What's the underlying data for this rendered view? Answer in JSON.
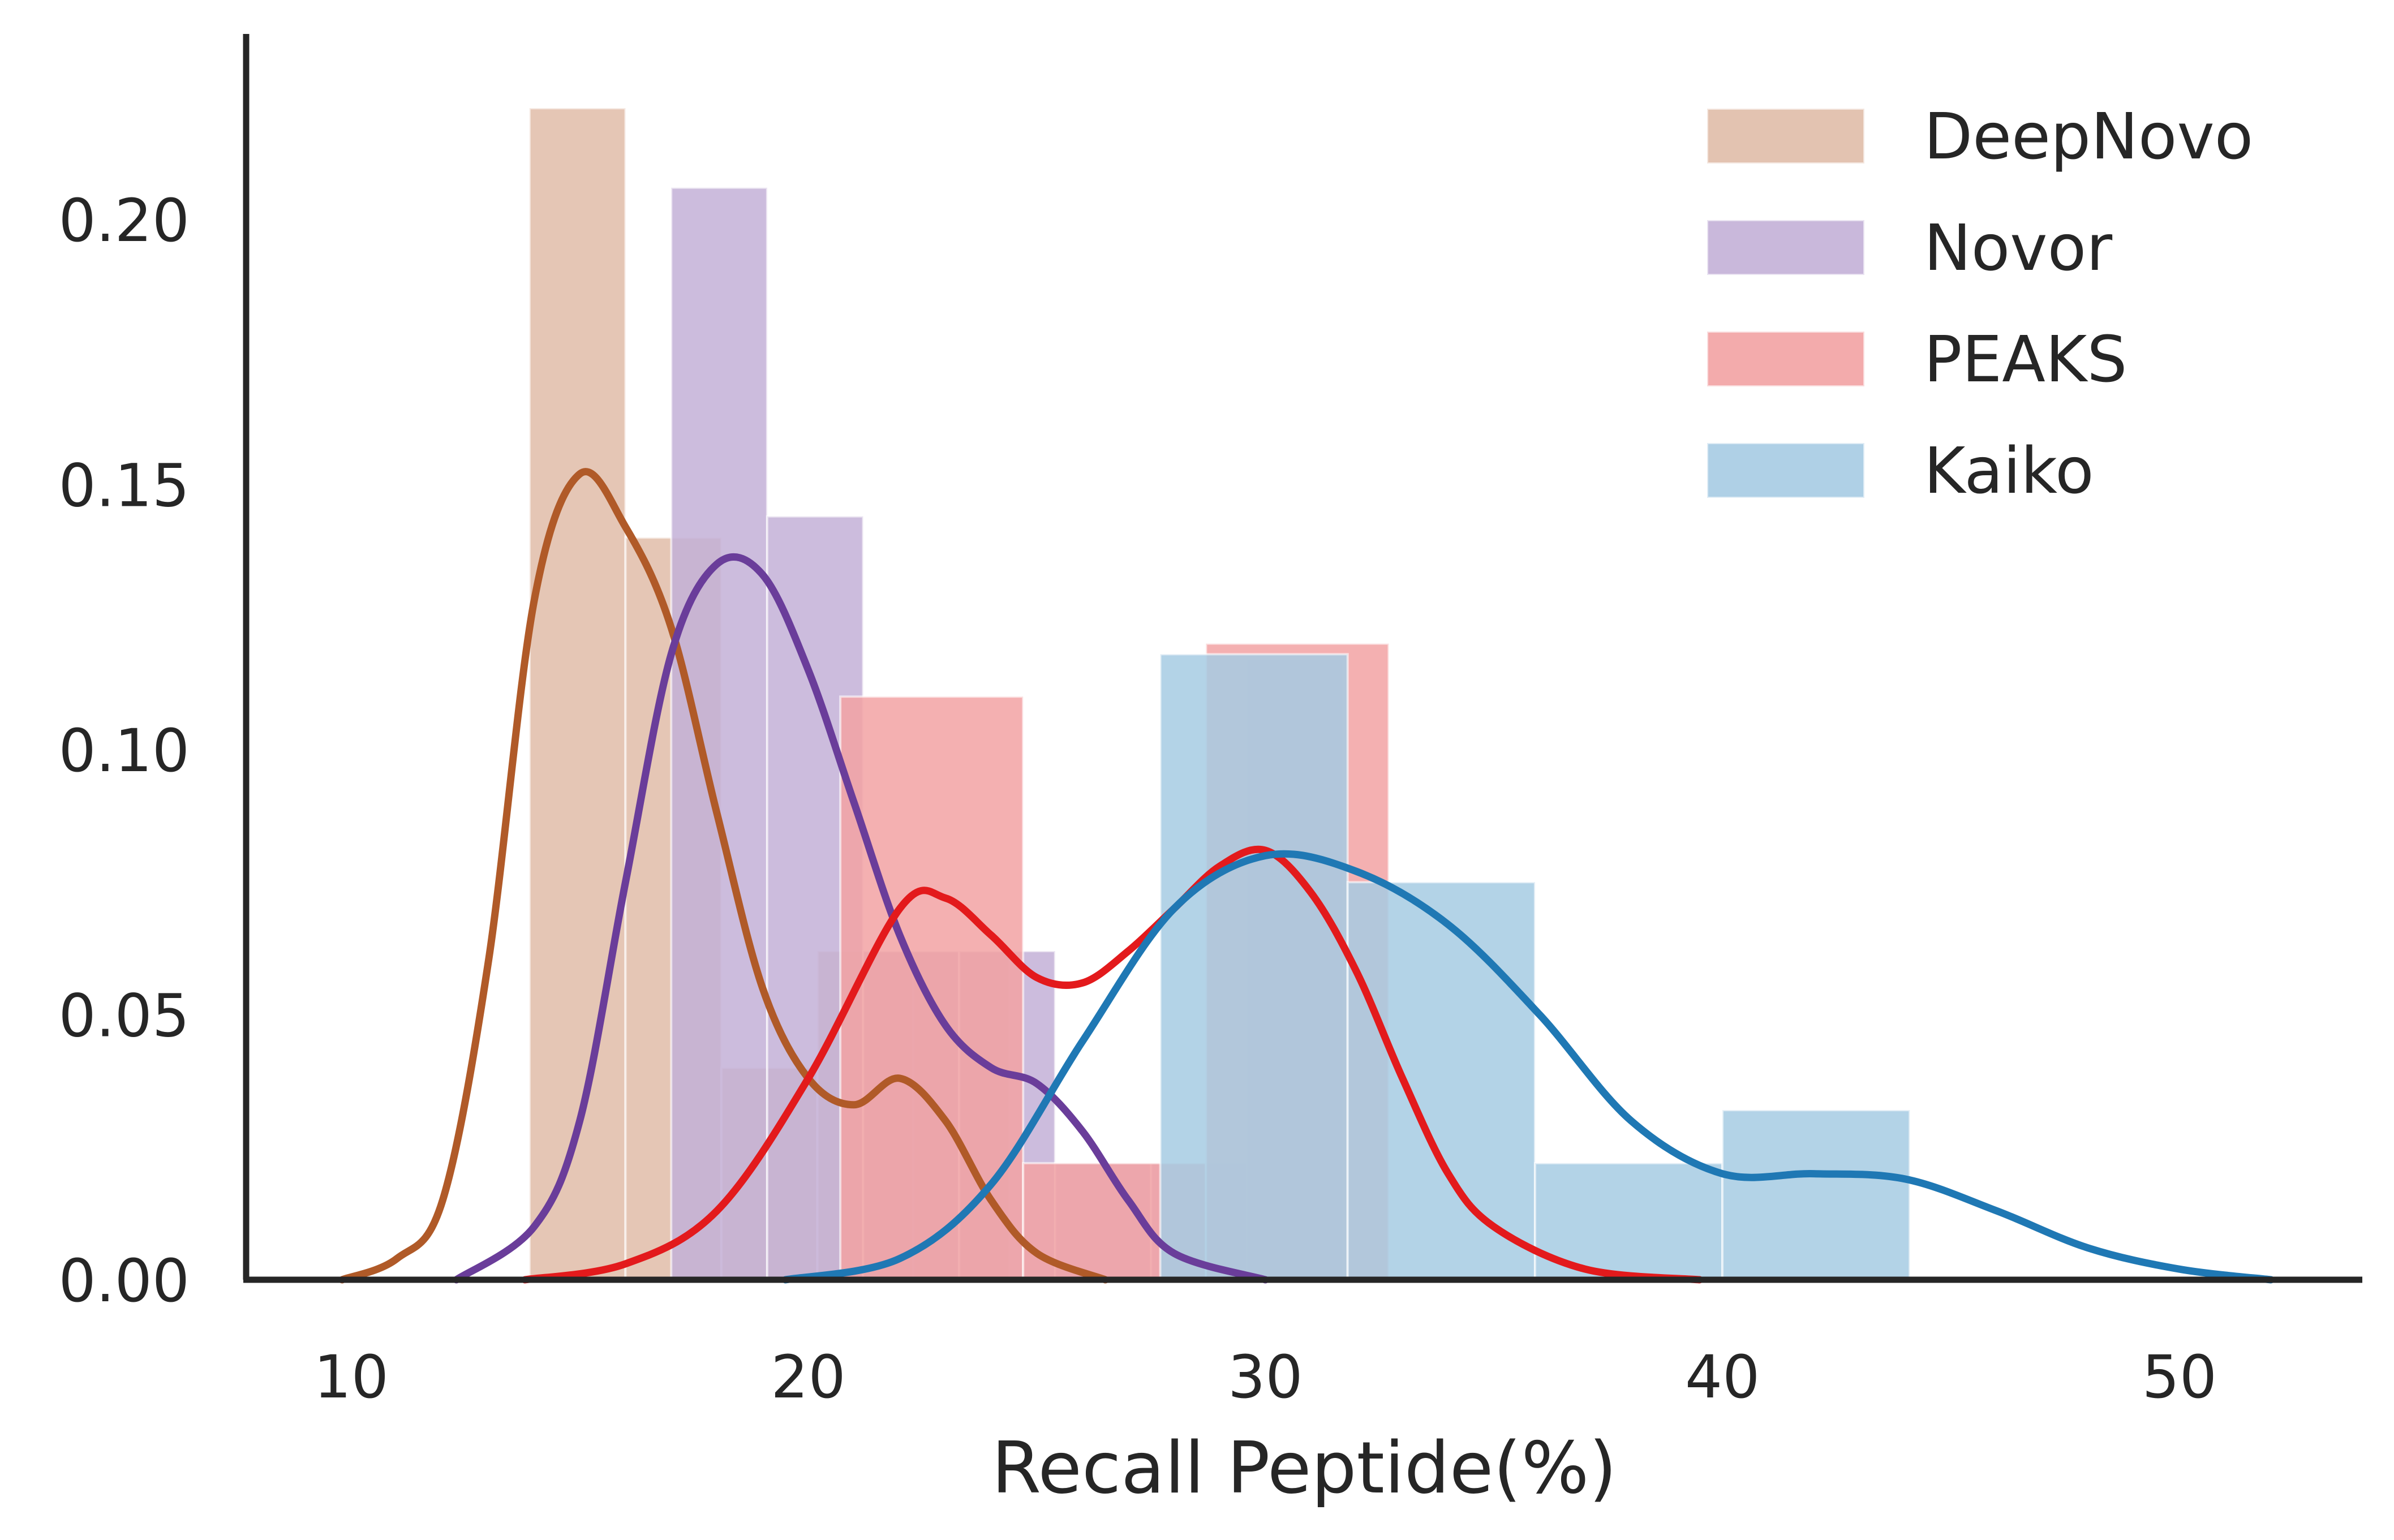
{
  "chart_data": {
    "type": "histogram",
    "xlabel": "Recall Peptide(%)",
    "ylabel": "",
    "xlim": [
      7.7,
      54
    ],
    "ylim": [
      0,
      0.235
    ],
    "xticks": [
      10,
      20,
      30,
      40,
      50
    ],
    "yticks": [
      0.0,
      0.05,
      0.1,
      0.15,
      0.2
    ],
    "xtick_labels": [
      "10",
      "20",
      "30",
      "40",
      "50"
    ],
    "ytick_labels": [
      "0.00",
      "0.05",
      "0.10",
      "0.15",
      "0.20"
    ],
    "grid": false,
    "legend_position": "top-right",
    "series": [
      {
        "name": "DeepNovo",
        "bar_color": "#e0bca8",
        "line_color": "#b05a28",
        "bins": [
          {
            "x0": 13.9,
            "x1": 16.0,
            "y": 0.221
          },
          {
            "x0": 16.0,
            "x1": 18.1,
            "y": 0.14
          },
          {
            "x0": 18.1,
            "x1": 20.2,
            "y": 0.04
          },
          {
            "x0": 20.2,
            "x1": 22.3,
            "y": 0.062
          },
          {
            "x0": 22.3,
            "x1": 24.4,
            "y": 0.062
          }
        ],
        "kde": [
          [
            9.8,
            0.0
          ],
          [
            11,
            0.004
          ],
          [
            12,
            0.015
          ],
          [
            13,
            0.06
          ],
          [
            14,
            0.128
          ],
          [
            15,
            0.152
          ],
          [
            16,
            0.142
          ],
          [
            17,
            0.123
          ],
          [
            18,
            0.088
          ],
          [
            19,
            0.055
          ],
          [
            20,
            0.038
          ],
          [
            21,
            0.033
          ],
          [
            22,
            0.038
          ],
          [
            23,
            0.03
          ],
          [
            24,
            0.015
          ],
          [
            25,
            0.005
          ],
          [
            26.5,
            0.0
          ]
        ]
      },
      {
        "name": "Novor",
        "bar_color": "#c3b0d7",
        "line_color": "#6a3d9a",
        "bins": [
          {
            "x0": 17.0,
            "x1": 19.1,
            "y": 0.206
          },
          {
            "x0": 19.1,
            "x1": 21.2,
            "y": 0.144
          },
          {
            "x0": 21.2,
            "x1": 23.3,
            "y": 0.062
          },
          {
            "x0": 23.3,
            "x1": 25.4,
            "y": 0.062
          },
          {
            "x0": 25.4,
            "x1": 27.5,
            "y": 0.022
          },
          {
            "x0": 27.5,
            "x1": 29.6,
            "y": 0.022
          },
          {
            "x0": 29.6,
            "x1": 31.7,
            "y": 0.117
          }
        ],
        "kde": [
          [
            12.3,
            0.0
          ],
          [
            14,
            0.01
          ],
          [
            15,
            0.03
          ],
          [
            16,
            0.075
          ],
          [
            17,
            0.118
          ],
          [
            18,
            0.135
          ],
          [
            19,
            0.133
          ],
          [
            20,
            0.115
          ],
          [
            21,
            0.09
          ],
          [
            22,
            0.065
          ],
          [
            23,
            0.048
          ],
          [
            24,
            0.04
          ],
          [
            25,
            0.037
          ],
          [
            26,
            0.028
          ],
          [
            27,
            0.015
          ],
          [
            28,
            0.005
          ],
          [
            30,
            0.0
          ]
        ]
      },
      {
        "name": "PEAKS",
        "bar_color": "#f2a2a3",
        "line_color": "#e31a1c",
        "bins": [
          {
            "x0": 20.7,
            "x1": 24.7,
            "y": 0.11
          },
          {
            "x0": 24.7,
            "x1": 28.7,
            "y": 0.022
          },
          {
            "x0": 28.7,
            "x1": 32.7,
            "y": 0.12
          }
        ],
        "kde": [
          [
            13.8,
            0.0
          ],
          [
            16,
            0.003
          ],
          [
            18,
            0.013
          ],
          [
            20,
            0.038
          ],
          [
            22,
            0.07
          ],
          [
            23,
            0.072
          ],
          [
            24,
            0.065
          ],
          [
            25,
            0.057
          ],
          [
            26,
            0.056
          ],
          [
            27,
            0.062
          ],
          [
            28,
            0.07
          ],
          [
            29,
            0.078
          ],
          [
            30,
            0.081
          ],
          [
            31,
            0.073
          ],
          [
            32,
            0.058
          ],
          [
            33,
            0.038
          ],
          [
            34,
            0.02
          ],
          [
            35,
            0.01
          ],
          [
            37,
            0.002
          ],
          [
            39.5,
            0.0
          ]
        ]
      },
      {
        "name": "Kaiko",
        "bar_color": "#a6cbe3",
        "line_color": "#1f78b4",
        "bins": [
          {
            "x0": 27.7,
            "x1": 31.8,
            "y": 0.118
          },
          {
            "x0": 31.8,
            "x1": 35.9,
            "y": 0.075
          },
          {
            "x0": 35.9,
            "x1": 40.0,
            "y": 0.022
          },
          {
            "x0": 40.0,
            "x1": 44.1,
            "y": 0.032
          }
        ],
        "kde": [
          [
            19.5,
            0.0
          ],
          [
            22,
            0.004
          ],
          [
            24,
            0.018
          ],
          [
            26,
            0.045
          ],
          [
            28,
            0.07
          ],
          [
            30,
            0.08
          ],
          [
            32,
            0.077
          ],
          [
            34,
            0.067
          ],
          [
            36,
            0.05
          ],
          [
            38,
            0.03
          ],
          [
            40,
            0.02
          ],
          [
            42,
            0.02
          ],
          [
            44,
            0.019
          ],
          [
            46,
            0.013
          ],
          [
            48,
            0.006
          ],
          [
            50,
            0.002
          ],
          [
            52,
            0.0
          ]
        ]
      }
    ]
  }
}
